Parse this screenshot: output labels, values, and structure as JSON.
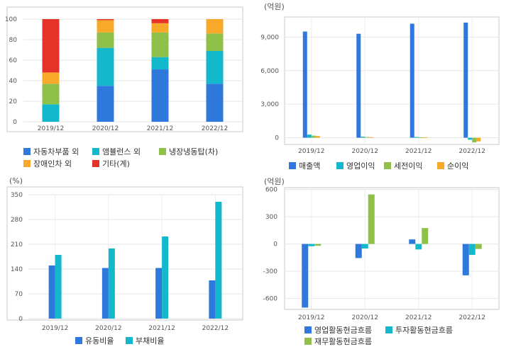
{
  "chart_data": [
    {
      "id": "product-mix",
      "type": "bar",
      "stacked": true,
      "unit_label": "",
      "categories": [
        "2019/12",
        "2020/12",
        "2021/12",
        "2022/12"
      ],
      "yticks": [
        0,
        20,
        40,
        60,
        80,
        100
      ],
      "ylim": [
        0,
        100
      ],
      "grid": true,
      "legend_position": "bottom",
      "series": [
        {
          "name": "자동차부품 외",
          "color": "#2f78dc",
          "values": [
            0,
            35,
            51,
            37
          ]
        },
        {
          "name": "앰뷸런스 외",
          "color": "#13b8cc",
          "values": [
            17,
            37,
            12,
            32
          ]
        },
        {
          "name": "냉장냉동탑(차)",
          "color": "#8ec04a",
          "values": [
            20,
            15,
            24,
            17
          ]
        },
        {
          "name": "장애인차 외",
          "color": "#f9a92a",
          "values": [
            11,
            12,
            9,
            14
          ]
        },
        {
          "name": "기타(계)",
          "color": "#e6332a",
          "values": [
            52,
            1,
            4,
            0
          ]
        }
      ]
    },
    {
      "id": "income",
      "type": "bar",
      "unit_label": "(억원)",
      "categories": [
        "2019/12",
        "2020/12",
        "2021/12",
        "2022/12"
      ],
      "yticks": [
        0,
        3000,
        6000,
        9000
      ],
      "ytick_labels": [
        "0",
        "3,000",
        "6,000",
        "9,000"
      ],
      "ylim": [
        -600,
        10800
      ],
      "grid": true,
      "legend_position": "bottom",
      "series": [
        {
          "name": "매출액",
          "color": "#2f78dc",
          "values": [
            9500,
            9300,
            10200,
            10300
          ]
        },
        {
          "name": "영업이익",
          "color": "#13b8cc",
          "values": [
            280,
            90,
            70,
            -180
          ]
        },
        {
          "name": "세전이익",
          "color": "#8ec04a",
          "values": [
            190,
            60,
            40,
            -420
          ]
        },
        {
          "name": "순이익",
          "color": "#f9a92a",
          "values": [
            150,
            50,
            30,
            -330
          ]
        }
      ]
    },
    {
      "id": "ratios",
      "type": "bar",
      "unit_label": "(%)",
      "categories": [
        "2019/12",
        "2020/12",
        "2021/12",
        "2022/12"
      ],
      "yticks": [
        0,
        70,
        140,
        210,
        280,
        350
      ],
      "ylim": [
        0,
        350
      ],
      "grid": true,
      "legend_position": "bottom",
      "series": [
        {
          "name": "유동비율",
          "color": "#2f78dc",
          "values": [
            150,
            143,
            143,
            108
          ]
        },
        {
          "name": "부채비율",
          "color": "#13b8cc",
          "values": [
            180,
            198,
            232,
            330
          ]
        }
      ]
    },
    {
      "id": "cashflow",
      "type": "bar",
      "unit_label": "(억원)",
      "categories": [
        "2019/12",
        "2020/12",
        "2021/12",
        "2022/12"
      ],
      "yticks": [
        -600,
        -300,
        0,
        300,
        600
      ],
      "ylim": [
        -720,
        620
      ],
      "grid": true,
      "legend_position": "bottom",
      "series": [
        {
          "name": "영업활동현금흐름",
          "color": "#2f78dc",
          "values": [
            -700,
            -155,
            50,
            -345
          ]
        },
        {
          "name": "투자활동현금흐름",
          "color": "#13b8cc",
          "values": [
            -25,
            -50,
            -60,
            -120
          ]
        },
        {
          "name": "재무활동현금흐름",
          "color": "#8ec04a",
          "values": [
            -20,
            545,
            175,
            -55
          ]
        }
      ]
    }
  ]
}
